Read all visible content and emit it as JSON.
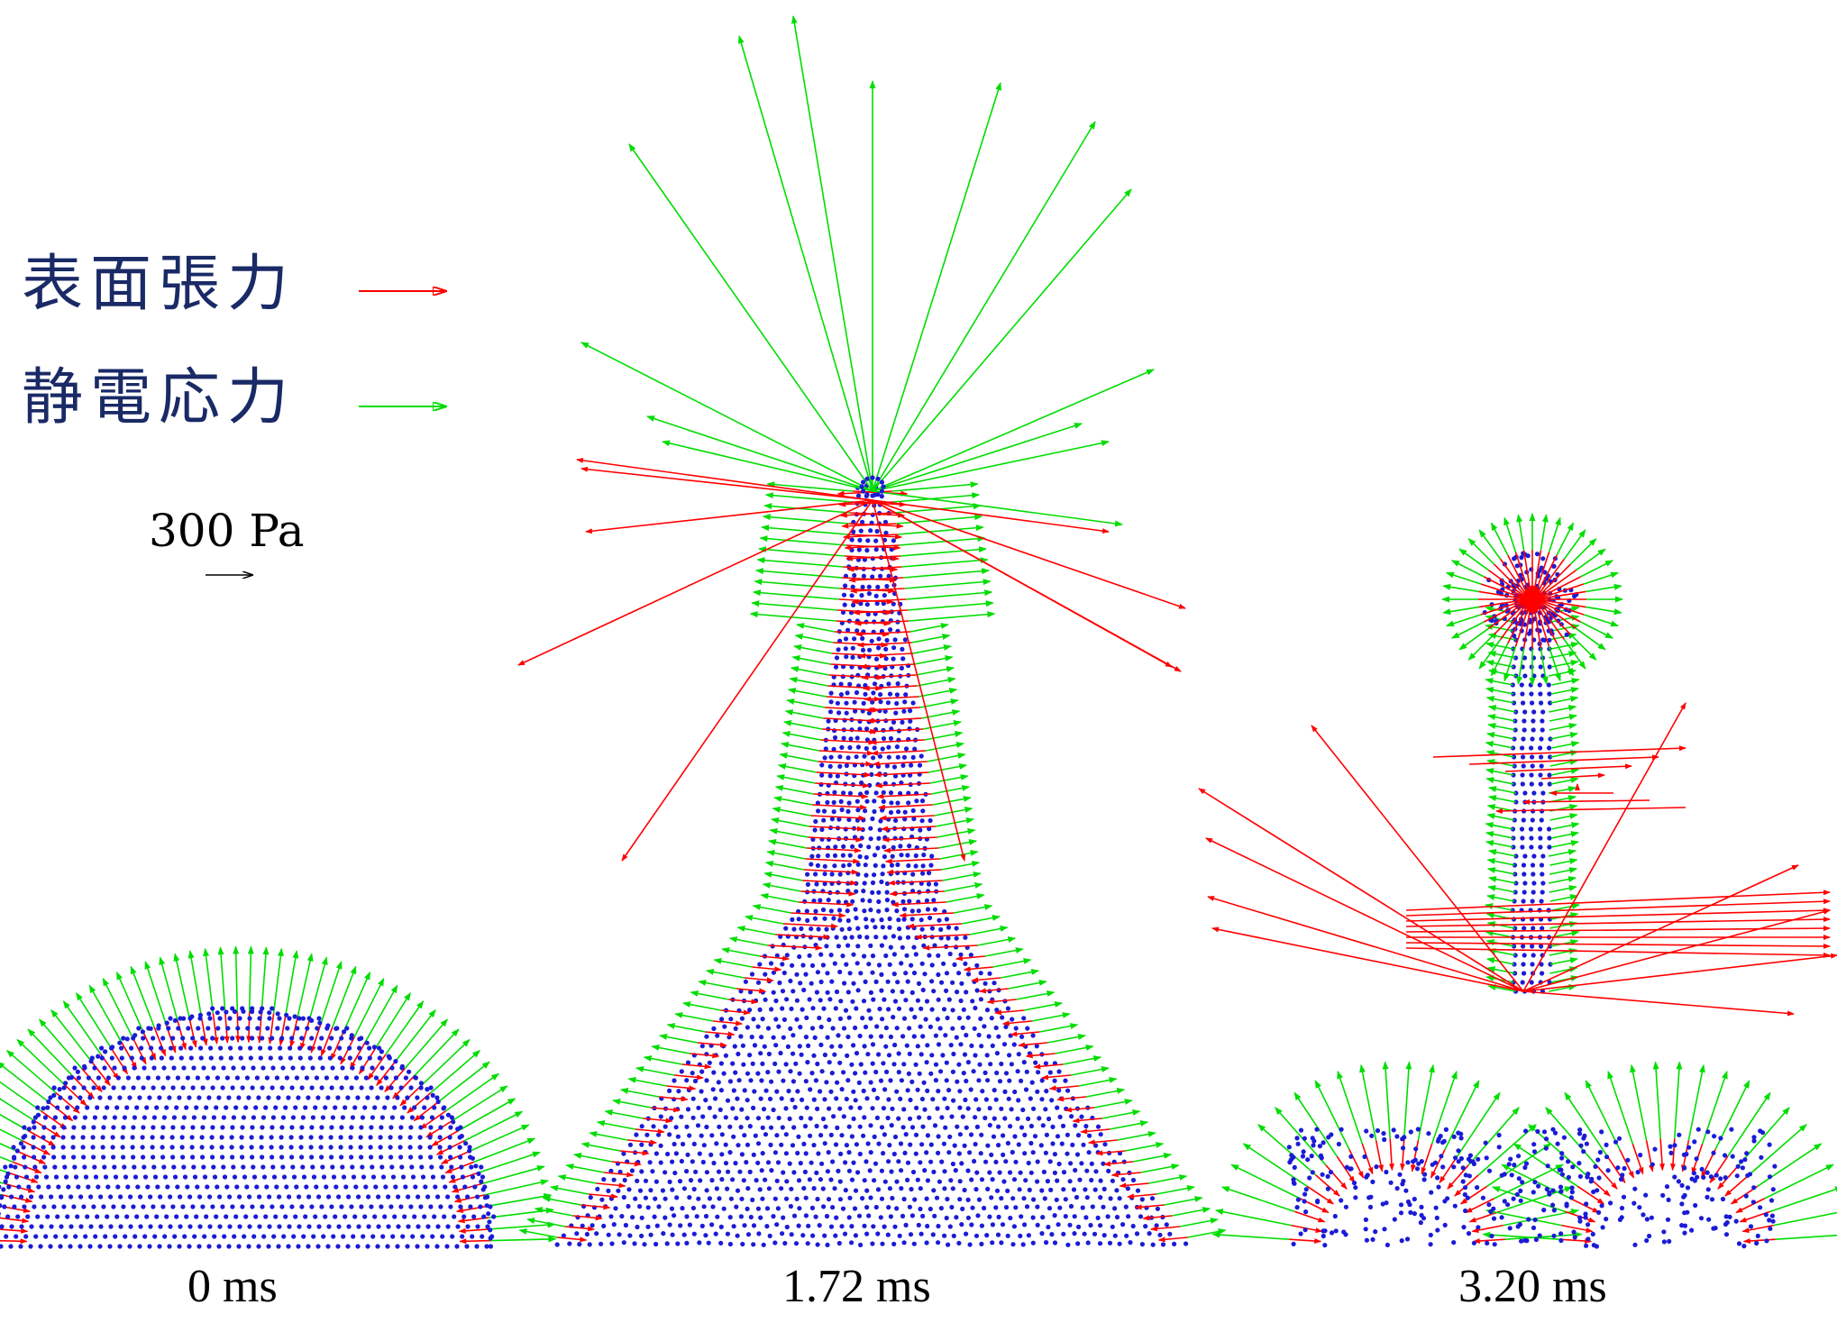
{
  "legend": {
    "surface_tension": {
      "label": "表面張力",
      "color": "#ff0000"
    },
    "electrostatic_stress": {
      "label": "静電応力",
      "color": "#00dd00"
    }
  },
  "scale_bar": {
    "label": "300 Pa"
  },
  "node_color": "#1b1bd6",
  "frames": [
    {
      "time_label": "0 ms"
    },
    {
      "time_label": "1.72 ms"
    },
    {
      "time_label": "3.20 ms"
    }
  ]
}
